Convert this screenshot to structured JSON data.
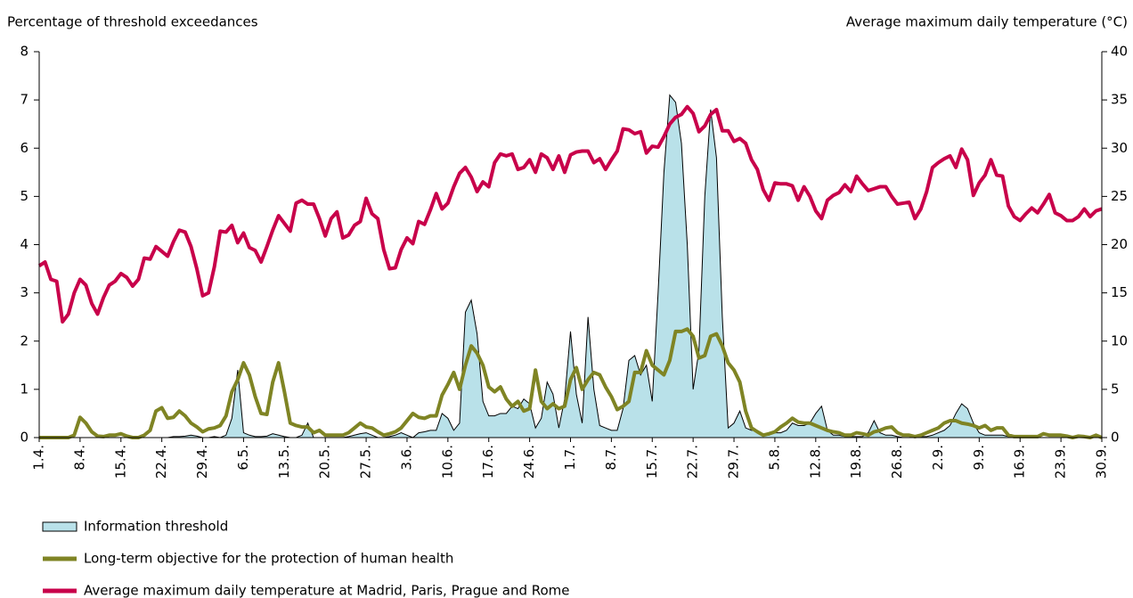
{
  "chart_data": {
    "type": "line",
    "ylabel": "Percentage of threshold exceedances",
    "y2label": "Average maximum daily temperature (°C)",
    "ylim": [
      0,
      8
    ],
    "yticks": [
      0,
      1,
      2,
      3,
      4,
      5,
      6,
      7,
      8
    ],
    "y2lim": [
      0,
      40
    ],
    "y2ticks": [
      0,
      5,
      10,
      15,
      20,
      25,
      30,
      35,
      40
    ],
    "categories": [
      "1.4.",
      null,
      null,
      null,
      null,
      null,
      null,
      "8.4.",
      null,
      null,
      null,
      null,
      null,
      null,
      "15.4.",
      null,
      null,
      null,
      null,
      null,
      null,
      "22.4.",
      null,
      null,
      null,
      null,
      null,
      null,
      "29.4.",
      null,
      null,
      null,
      null,
      null,
      null,
      "6.5.",
      null,
      null,
      null,
      null,
      null,
      null,
      "13.5.",
      null,
      null,
      null,
      null,
      null,
      null,
      "20.5.",
      null,
      null,
      null,
      null,
      null,
      null,
      "27.5.",
      null,
      null,
      null,
      null,
      null,
      null,
      "3.6.",
      null,
      null,
      null,
      null,
      null,
      null,
      "10.6.",
      null,
      null,
      null,
      null,
      null,
      null,
      "17.6.",
      null,
      null,
      null,
      null,
      null,
      null,
      "24.6.",
      null,
      null,
      null,
      null,
      null,
      null,
      "1.7.",
      null,
      null,
      null,
      null,
      null,
      null,
      "8.7.",
      null,
      null,
      null,
      null,
      null,
      null,
      "15.7.",
      null,
      null,
      null,
      null,
      null,
      null,
      "22.7.",
      null,
      null,
      null,
      null,
      null,
      null,
      "29.7.",
      null,
      null,
      null,
      null,
      null,
      null,
      "5.8.",
      null,
      null,
      null,
      null,
      null,
      null,
      "12.8.",
      null,
      null,
      null,
      null,
      null,
      null,
      "19.8.",
      null,
      null,
      null,
      null,
      null,
      null,
      "26.8.",
      null,
      null,
      null,
      null,
      null,
      null,
      "2.9.",
      null,
      null,
      null,
      null,
      null,
      null,
      "9.9.",
      null,
      null,
      null,
      null,
      null,
      null,
      "16.9.",
      null,
      null,
      null,
      null,
      null,
      null,
      "23.9.",
      null,
      null,
      null,
      null,
      null,
      null,
      "30.9."
    ],
    "series": [
      {
        "name": "Information threshold",
        "kind": "area",
        "color": "#b9e1e9",
        "values": [
          0,
          0,
          0,
          0,
          0,
          0,
          0,
          0,
          0,
          0,
          0,
          0,
          0,
          0,
          0,
          0,
          0,
          0,
          0,
          0,
          0,
          0,
          0,
          0.02,
          0.02,
          0.03,
          0.05,
          0.03,
          0,
          0,
          0.02,
          0,
          0.05,
          0.4,
          1.4,
          0.1,
          0.05,
          0.02,
          0.02,
          0.03,
          0.08,
          0.05,
          0.02,
          0,
          0,
          0.05,
          0.3,
          0,
          0,
          0,
          0,
          0,
          0,
          0.02,
          0.05,
          0.08,
          0.1,
          0.05,
          0,
          0,
          0.02,
          0.05,
          0.1,
          0.05,
          0,
          0.1,
          0.12,
          0.15,
          0.15,
          0.5,
          0.4,
          0.15,
          0.3,
          2.6,
          2.85,
          2.15,
          0.75,
          0.45,
          0.45,
          0.5,
          0.5,
          0.65,
          0.6,
          0.8,
          0.7,
          0.2,
          0.4,
          1.15,
          0.9,
          0.2,
          0.8,
          2.2,
          0.9,
          0.3,
          2.5,
          1.0,
          0.25,
          0.2,
          0.15,
          0.15,
          0.6,
          1.6,
          1.7,
          1.3,
          1.5,
          0.75,
          3.0,
          5.5,
          7.1,
          6.95,
          6.1,
          4.0,
          1.0,
          1.8,
          5.0,
          6.8,
          5.8,
          2.5,
          0.2,
          0.3,
          0.55,
          0.2,
          0.15,
          0.15,
          0.05,
          0.05,
          0.1,
          0.1,
          0.15,
          0.3,
          0.25,
          0.25,
          0.3,
          0.5,
          0.65,
          0.15,
          0.05,
          0.05,
          0.02,
          0.02,
          0.02,
          0.02,
          0.1,
          0.35,
          0.1,
          0.05,
          0.05,
          0.02,
          0,
          0,
          0,
          0.02,
          0.02,
          0.05,
          0.1,
          0.15,
          0.25,
          0.5,
          0.7,
          0.6,
          0.3,
          0.1,
          0.05,
          0.05,
          0.05,
          0.05,
          0.02,
          0,
          0,
          0,
          0,
          0,
          0,
          0,
          0,
          0,
          0,
          0,
          0,
          0,
          0,
          0,
          0
        ]
      },
      {
        "name": "Long-term objective for the protection of human health",
        "kind": "line",
        "color": "#7f8424",
        "values": [
          0,
          0,
          0,
          0,
          0,
          0,
          0.05,
          0.42,
          0.3,
          0.12,
          0.03,
          0.02,
          0.05,
          0.05,
          0.08,
          0.03,
          0,
          0,
          0.05,
          0.15,
          0.55,
          0.62,
          0.4,
          0.42,
          0.55,
          0.45,
          0.3,
          0.22,
          0.12,
          0.18,
          0.2,
          0.25,
          0.45,
          0.95,
          1.2,
          1.55,
          1.3,
          0.85,
          0.5,
          0.48,
          1.15,
          1.55,
          0.95,
          0.3,
          0.25,
          0.22,
          0.22,
          0.1,
          0.15,
          0.05,
          0.05,
          0.05,
          0.05,
          0.1,
          0.2,
          0.3,
          0.22,
          0.2,
          0.12,
          0.05,
          0.08,
          0.12,
          0.2,
          0.35,
          0.5,
          0.42,
          0.4,
          0.45,
          0.45,
          0.88,
          1.1,
          1.35,
          1.0,
          1.5,
          1.9,
          1.75,
          1.5,
          1.05,
          0.95,
          1.05,
          0.8,
          0.65,
          0.75,
          0.55,
          0.6,
          1.4,
          0.75,
          0.6,
          0.7,
          0.6,
          0.65,
          1.2,
          1.45,
          1.0,
          1.2,
          1.35,
          1.3,
          1.05,
          0.85,
          0.58,
          0.65,
          0.75,
          1.35,
          1.35,
          1.8,
          1.5,
          1.4,
          1.3,
          1.6,
          2.2,
          2.2,
          2.25,
          2.1,
          1.65,
          1.7,
          2.1,
          2.15,
          1.9,
          1.55,
          1.4,
          1.15,
          0.55,
          0.2,
          0.12,
          0.05,
          0.08,
          0.12,
          0.22,
          0.3,
          0.4,
          0.32,
          0.3,
          0.3,
          0.25,
          0.2,
          0.15,
          0.12,
          0.1,
          0.05,
          0.05,
          0.1,
          0.08,
          0.05,
          0.12,
          0.15,
          0.2,
          0.22,
          0.1,
          0.05,
          0.05,
          0.02,
          0.05,
          0.1,
          0.15,
          0.2,
          0.3,
          0.35,
          0.35,
          0.3,
          0.28,
          0.25,
          0.2,
          0.25,
          0.15,
          0.2,
          0.2,
          0.05,
          0.02,
          0.02,
          0.02,
          0.02,
          0.02,
          0.08,
          0.05,
          0.05,
          0.05,
          0.03,
          0,
          0.03,
          0.02,
          0,
          0.05,
          0
        ]
      },
      {
        "name": "Average maximum daily temperature at Madrid, Paris, Prague and Rome",
        "kind": "line",
        "axis": "y2",
        "color": "#c8004a",
        "values": [
          17.8,
          18.2,
          16.4,
          16.2,
          12,
          12.8,
          15,
          16.4,
          15.8,
          13.9,
          12.8,
          14.5,
          15.8,
          16.2,
          17,
          16.6,
          15.7,
          16.4,
          18.6,
          18.5,
          19.8,
          19.3,
          18.8,
          20.3,
          21.5,
          21.3,
          19.8,
          17.5,
          14.7,
          15,
          17.7,
          21.4,
          21.3,
          22,
          20.2,
          21.2,
          19.7,
          19.4,
          18.2,
          19.8,
          21.5,
          23,
          22.2,
          21.4,
          24.3,
          24.6,
          24.2,
          24.2,
          22.7,
          20.9,
          22.7,
          23.4,
          20.7,
          21,
          22,
          22.4,
          24.8,
          23.2,
          22.7,
          19.5,
          17.5,
          17.6,
          19.5,
          20.7,
          20.1,
          22.4,
          22.1,
          23.6,
          25.3,
          23.7,
          24.3,
          26,
          27.4,
          28,
          27,
          25.5,
          26.5,
          26,
          28.5,
          29.4,
          29.2,
          29.4,
          27.8,
          28,
          28.8,
          27.5,
          29.4,
          29,
          27.8,
          29.2,
          27.5,
          29.3,
          29.6,
          29.7,
          29.7,
          28.5,
          28.9,
          27.8,
          28.8,
          29.7,
          32,
          31.9,
          31.5,
          31.7,
          29.5,
          30.2,
          30.1,
          31.2,
          32.5,
          33.2,
          33.5,
          34.3,
          33.6,
          31.7,
          32.3,
          33.5,
          34,
          31.8,
          31.8,
          30.7,
          31,
          30.5,
          28.8,
          27.8,
          25.7,
          24.6,
          26.4,
          26.3,
          26.3,
          26.1,
          24.6,
          26,
          25,
          23.5,
          22.7,
          24.6,
          25.1,
          25.4,
          26.2,
          25.5,
          27.1,
          26.3,
          25.6,
          25.8,
          26,
          26,
          25,
          24.2,
          24.3,
          24.4,
          22.7,
          23.7,
          25.5,
          28,
          28.5,
          28.9,
          29.2,
          28,
          29.9,
          28.8,
          25.1,
          26.4,
          27.2,
          28.8,
          27.2,
          27.1,
          24,
          22.9,
          22.5,
          23.2,
          23.8,
          23.3,
          24.2,
          25.2,
          23.3,
          23,
          22.5,
          22.5,
          22.9,
          23.7,
          22.9,
          23.5,
          23.7
        ]
      }
    ]
  }
}
